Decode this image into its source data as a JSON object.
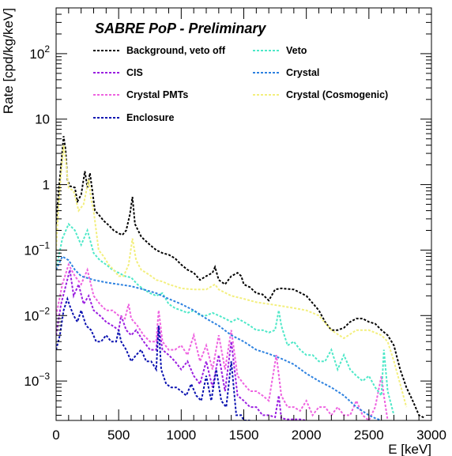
{
  "chart_data": {
    "type": "line",
    "title": "SABRE PoP - Preliminary",
    "xlabel": "E [keV]",
    "ylabel": "Rate [cpd/kg/keV]",
    "xlim": [
      0,
      3000
    ],
    "ylim": [
      0.00025,
      500
    ],
    "yscale": "log",
    "grid": false,
    "legend_placement": "top",
    "x_ticks": [
      {
        "value": 0,
        "label": "0"
      },
      {
        "value": 500,
        "label": "500"
      },
      {
        "value": 1000,
        "label": "1000"
      },
      {
        "value": 1500,
        "label": "1500"
      },
      {
        "value": 2000,
        "label": "2000"
      },
      {
        "value": 2500,
        "label": "2500"
      },
      {
        "value": 3000,
        "label": "3000"
      }
    ],
    "y_ticks": [
      {
        "value": 0.001,
        "base": "10",
        "exp": "−3"
      },
      {
        "value": 0.01,
        "base": "10",
        "exp": "−2"
      },
      {
        "value": 0.1,
        "base": "10",
        "exp": "−1"
      },
      {
        "value": 1,
        "base": "1",
        "exp": ""
      },
      {
        "value": 10,
        "base": "10",
        "exp": ""
      },
      {
        "value": 100,
        "base": "10",
        "exp": "2"
      }
    ],
    "series": [
      {
        "name": "Background, veto off",
        "color": "#000000",
        "x": [
          0,
          20,
          40,
          60,
          75,
          90,
          110,
          150,
          170,
          200,
          230,
          250,
          270,
          290,
          310,
          340,
          380,
          420,
          460,
          500,
          530,
          560,
          590,
          610,
          630,
          680,
          750,
          800,
          850,
          900,
          950,
          1000,
          1050,
          1100,
          1150,
          1200,
          1250,
          1270,
          1300,
          1350,
          1400,
          1450,
          1480,
          1500,
          1550,
          1600,
          1650,
          1700,
          1750,
          1800,
          1900,
          2000,
          2100,
          2150,
          2200,
          2250,
          2300,
          2350,
          2400,
          2450,
          2500,
          2550,
          2600,
          2650,
          2700,
          2750,
          2800,
          2850,
          2900,
          2950
        ],
        "y": [
          0.25,
          0.8,
          2,
          5.5,
          3.5,
          1.2,
          0.95,
          0.9,
          0.55,
          0.7,
          1.6,
          0.9,
          1.5,
          0.8,
          0.4,
          0.35,
          0.28,
          0.24,
          0.2,
          0.18,
          0.17,
          0.2,
          0.35,
          0.65,
          0.25,
          0.16,
          0.12,
          0.1,
          0.09,
          0.085,
          0.075,
          0.06,
          0.05,
          0.045,
          0.035,
          0.04,
          0.045,
          0.055,
          0.035,
          0.03,
          0.04,
          0.045,
          0.04,
          0.03,
          0.027,
          0.022,
          0.021,
          0.017,
          0.025,
          0.026,
          0.025,
          0.02,
          0.012,
          0.008,
          0.006,
          0.006,
          0.0065,
          0.008,
          0.009,
          0.009,
          0.008,
          0.0075,
          0.006,
          0.005,
          0.0035,
          0.0015,
          0.0008,
          0.0005,
          0.0003,
          0.00027
        ]
      },
      {
        "name": "CIS",
        "color": "#9a1ee0",
        "x": [
          0,
          40,
          80,
          110,
          140,
          180,
          220,
          260,
          300,
          350,
          400,
          450,
          500,
          520,
          560,
          600,
          640,
          700,
          750,
          800,
          820,
          850,
          900,
          950,
          1000,
          1050,
          1100,
          1150,
          1200,
          1250,
          1300,
          1350,
          1400,
          1450,
          1500,
          1550,
          1600,
          1650,
          1700,
          1750,
          1780,
          1800,
          1850,
          1900,
          1950,
          2000
        ],
        "y": [
          0.005,
          0.015,
          0.03,
          0.05,
          0.02,
          0.03,
          0.015,
          0.02,
          0.012,
          0.01,
          0.008,
          0.007,
          0.006,
          0.01,
          0.006,
          0.005,
          0.006,
          0.004,
          0.003,
          0.003,
          0.007,
          0.003,
          0.0025,
          0.002,
          0.0015,
          0.002,
          0.0012,
          0.0009,
          0.002,
          0.0008,
          0.0025,
          0.0007,
          0.004,
          0.0006,
          0.0005,
          0.0004,
          0.0004,
          0.0003,
          0.0003,
          0.00028,
          0.0006,
          0.00027,
          0.00026,
          0.00026,
          0.00026,
          0.00025
        ]
      },
      {
        "name": "Crystal PMTs",
        "color": "#ee62e0",
        "x": [
          0,
          50,
          100,
          150,
          200,
          250,
          300,
          350,
          400,
          450,
          500,
          550,
          580,
          600,
          650,
          700,
          750,
          800,
          820,
          850,
          900,
          950,
          1000,
          1050,
          1100,
          1150,
          1200,
          1250,
          1300,
          1350,
          1400,
          1450,
          1500,
          1550,
          1600,
          1650,
          1700,
          1760,
          1800,
          1850,
          1900,
          1950,
          2000,
          2050,
          2100,
          2150,
          2200,
          2250,
          2300,
          2350,
          2400,
          2450,
          2500,
          2550,
          2600,
          2620,
          2650
        ],
        "y": [
          0.01,
          0.03,
          0.06,
          0.04,
          0.03,
          0.05,
          0.02,
          0.015,
          0.012,
          0.012,
          0.01,
          0.009,
          0.015,
          0.009,
          0.007,
          0.005,
          0.004,
          0.004,
          0.012,
          0.004,
          0.003,
          0.003,
          0.0035,
          0.0025,
          0.005,
          0.002,
          0.0035,
          0.0015,
          0.005,
          0.0015,
          0.006,
          0.0012,
          0.0009,
          0.0007,
          0.0007,
          0.0006,
          0.0005,
          0.0025,
          0.0006,
          0.0004,
          0.0004,
          0.00035,
          0.0005,
          0.0003,
          0.0004,
          0.0004,
          0.0003,
          0.0004,
          0.0003,
          0.0003,
          0.0005,
          0.0003,
          0.00025,
          0.0004,
          0.0012,
          0.0006,
          0.00025
        ]
      },
      {
        "name": "Enclosure",
        "color": "#0a12b0",
        "x": [
          0,
          30,
          60,
          90,
          110,
          140,
          170,
          200,
          240,
          280,
          320,
          360,
          400,
          440,
          480,
          500,
          520,
          560,
          600,
          640,
          680,
          720,
          760,
          800,
          820,
          840,
          880,
          920,
          960,
          1000,
          1040,
          1080,
          1120,
          1160,
          1200,
          1240,
          1280,
          1320,
          1360,
          1400,
          1440,
          1480,
          1500,
          1550
        ],
        "y": [
          0.003,
          0.005,
          0.012,
          0.018,
          0.014,
          0.01,
          0.008,
          0.012,
          0.007,
          0.006,
          0.004,
          0.004,
          0.005,
          0.004,
          0.004,
          0.006,
          0.004,
          0.003,
          0.002,
          0.0025,
          0.003,
          0.002,
          0.002,
          0.0015,
          0.007,
          0.0015,
          0.0009,
          0.0008,
          0.0008,
          0.0007,
          0.0006,
          0.0009,
          0.0006,
          0.0005,
          0.0012,
          0.0005,
          0.0015,
          0.0005,
          0.0004,
          0.002,
          0.0003,
          0.0003,
          0.00025,
          0.00025
        ]
      },
      {
        "name": "Veto",
        "color": "#4ee8c8",
        "x": [
          0,
          50,
          100,
          150,
          200,
          250,
          300,
          350,
          400,
          450,
          500,
          550,
          600,
          650,
          700,
          750,
          800,
          850,
          900,
          950,
          1000,
          1050,
          1100,
          1150,
          1200,
          1250,
          1300,
          1350,
          1400,
          1450,
          1500,
          1550,
          1600,
          1650,
          1700,
          1750,
          1780,
          1800,
          1850,
          1900,
          1950,
          2000,
          2050,
          2100,
          2150,
          2200,
          2250,
          2300,
          2350,
          2400,
          2450,
          2500,
          2550,
          2600,
          2620,
          2650,
          2700
        ],
        "y": [
          0.05,
          0.15,
          0.25,
          0.2,
          0.12,
          0.2,
          0.09,
          0.07,
          0.06,
          0.05,
          0.045,
          0.04,
          0.038,
          0.03,
          0.025,
          0.022,
          0.02,
          0.022,
          0.015,
          0.013,
          0.012,
          0.011,
          0.012,
          0.01,
          0.01,
          0.011,
          0.01,
          0.009,
          0.008,
          0.009,
          0.008,
          0.007,
          0.006,
          0.006,
          0.0055,
          0.006,
          0.012,
          0.007,
          0.0035,
          0.004,
          0.003,
          0.0025,
          0.0025,
          0.002,
          0.002,
          0.003,
          0.0015,
          0.0025,
          0.0015,
          0.0012,
          0.001,
          0.0012,
          0.0008,
          0.0006,
          0.003,
          0.0007,
          0.0003
        ]
      },
      {
        "name": "Crystal",
        "color": "#2e82e0",
        "x": [
          0,
          50,
          100,
          150,
          200,
          300,
          400,
          500,
          600,
          700,
          800,
          900,
          1000,
          1100,
          1200,
          1300,
          1400,
          1500,
          1600,
          1700,
          1800,
          1900,
          2000,
          2100,
          2200,
          2300,
          2400,
          2500,
          2550,
          2600
        ],
        "y": [
          0.05,
          0.08,
          0.07,
          0.05,
          0.04,
          0.035,
          0.032,
          0.03,
          0.028,
          0.025,
          0.022,
          0.018,
          0.015,
          0.012,
          0.009,
          0.007,
          0.005,
          0.004,
          0.003,
          0.0026,
          0.0022,
          0.0018,
          0.0013,
          0.001,
          0.0008,
          0.0006,
          0.0004,
          0.0003,
          0.00027,
          0.00025
        ]
      },
      {
        "name": "Crystal (Cosmogenic)",
        "color": "#f3ef7e",
        "x": [
          0,
          20,
          40,
          60,
          80,
          100,
          140,
          180,
          220,
          260,
          280,
          300,
          340,
          380,
          420,
          460,
          500,
          540,
          580,
          610,
          640,
          680,
          720,
          760,
          800,
          850,
          900,
          950,
          1000,
          1100,
          1200,
          1270,
          1300,
          1400,
          1500,
          1600,
          1700,
          1800,
          1900,
          2000,
          2100,
          2200,
          2300,
          2400,
          2500,
          2600,
          2650,
          2700,
          2750,
          2800
        ],
        "y": [
          0.1,
          0.5,
          1.5,
          4,
          2,
          0.9,
          0.8,
          0.4,
          0.5,
          1.2,
          0.6,
          0.4,
          0.1,
          0.08,
          0.06,
          0.05,
          0.04,
          0.04,
          0.06,
          0.15,
          0.07,
          0.05,
          0.045,
          0.04,
          0.035,
          0.033,
          0.03,
          0.028,
          0.026,
          0.025,
          0.025,
          0.03,
          0.025,
          0.02,
          0.018,
          0.016,
          0.015,
          0.014,
          0.013,
          0.012,
          0.01,
          0.006,
          0.0045,
          0.006,
          0.006,
          0.005,
          0.004,
          0.002,
          0.0009,
          0.0004
        ]
      }
    ]
  }
}
